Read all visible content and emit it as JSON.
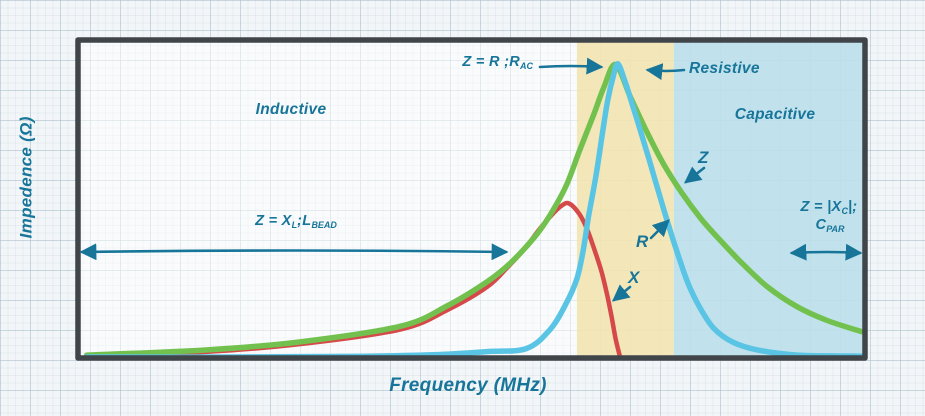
{
  "axes": {
    "y_label": "Impedence (Ω)",
    "x_label": "Frequency (MHz)"
  },
  "regions": {
    "inductive_label": "Inductive",
    "resistive_label": "Resistive",
    "capacitive_label": "Capacitive"
  },
  "curve_labels": {
    "z": "Z",
    "r": "R",
    "x": "X"
  },
  "formulas": {
    "peak": {
      "text": "Z = R ;R",
      "sub": "AC"
    },
    "inductive": {
      "t1": "Z = X",
      "s1": "L",
      "t2": ";L",
      "s2": "BEAD"
    },
    "capacitive": {
      "t1": "Z = |X",
      "s1": "C",
      "t2": "|;",
      "t3": "C",
      "s3": "PAR"
    }
  },
  "colors": {
    "annotation_teal": "#17759a",
    "curve_z_green": "#72c14e",
    "curve_r_blue": "#5ac4e4",
    "curve_x_red": "#d6494a",
    "band_resistive": "#f2e3ad",
    "band_capacitive": "#b7dde9",
    "plot_border": "#40454a",
    "paper": "#f2f6f8"
  },
  "chart_data": {
    "type": "line",
    "title": "",
    "xlabel": "Frequency (MHz)",
    "ylabel": "Impedence (Ω)",
    "axis_note": "log-style sketch; no numeric tick labels shown — point coords are percent of plot width/height",
    "legend_position": "inline-arrow-labels",
    "grid": "graph-paper background",
    "series": [
      {
        "name": "Z",
        "color": "#72c14e",
        "width": 5.5,
        "points": [
          [
            1.1,
            0.9
          ],
          [
            16,
            2.5
          ],
          [
            28,
            5
          ],
          [
            41,
            10
          ],
          [
            47,
            16.5
          ],
          [
            52,
            24
          ],
          [
            55,
            30
          ],
          [
            58,
            38
          ],
          [
            60,
            45
          ],
          [
            62,
            54
          ],
          [
            63.7,
            65
          ],
          [
            65.6,
            77
          ],
          [
            66.8,
            85
          ],
          [
            68.3,
            92.3
          ],
          [
            70.2,
            82
          ],
          [
            72.3,
            71
          ],
          [
            74.4,
            61
          ],
          [
            76.7,
            52
          ],
          [
            79.1,
            44
          ],
          [
            81.6,
            37
          ],
          [
            84.5,
            29.5
          ],
          [
            87.6,
            22.4
          ],
          [
            91.4,
            16.1
          ],
          [
            95.2,
            11.8
          ],
          [
            99.8,
            8.1
          ]
        ]
      },
      {
        "name": "R",
        "color": "#5ac4e4",
        "width": 5.5,
        "points": [
          [
            1.1,
            0.3
          ],
          [
            20,
            0.3
          ],
          [
            35,
            0.5
          ],
          [
            45,
            1
          ],
          [
            52,
            2
          ],
          [
            57,
            3
          ],
          [
            60,
            9
          ],
          [
            62,
            17
          ],
          [
            63.4,
            25
          ],
          [
            64.2,
            34
          ],
          [
            64.9,
            45
          ],
          [
            65.8,
            57
          ],
          [
            66.6,
            70
          ],
          [
            67.3,
            81
          ],
          [
            68,
            88.5
          ],
          [
            68.6,
            92.5
          ],
          [
            69.5,
            87
          ],
          [
            70.4,
            80
          ],
          [
            71.4,
            72
          ],
          [
            72.5,
            63
          ],
          [
            73.8,
            52
          ],
          [
            75,
            42
          ],
          [
            76.3,
            32
          ],
          [
            77.6,
            23
          ],
          [
            79.1,
            15.5
          ],
          [
            80.8,
            9.3
          ],
          [
            83.2,
            5
          ],
          [
            86.4,
            2.5
          ],
          [
            91.4,
            0.9
          ],
          [
            99.7,
            0.6
          ]
        ]
      },
      {
        "name": "X",
        "color": "#d6494a",
        "width": 4.5,
        "points": [
          [
            1.1,
            0.6
          ],
          [
            16,
            1.9
          ],
          [
            28,
            4.3
          ],
          [
            41,
            9
          ],
          [
            47,
            15.2
          ],
          [
            52,
            22.4
          ],
          [
            54.6,
            28.6
          ],
          [
            56.7,
            34.2
          ],
          [
            58.6,
            40.4
          ],
          [
            60.2,
            45
          ],
          [
            61.4,
            47.8
          ],
          [
            62.4,
            48.6
          ],
          [
            63.7,
            45.3
          ],
          [
            64.7,
            40.4
          ],
          [
            65.6,
            34.2
          ],
          [
            66.5,
            27.3
          ],
          [
            67.2,
            20.2
          ],
          [
            67.8,
            13
          ],
          [
            68.3,
            6.2
          ],
          [
            68.8,
            1
          ]
        ]
      }
    ],
    "regions": [
      {
        "name": "Inductive",
        "x_start": 0,
        "x_end": 63.4,
        "fill": "none"
      },
      {
        "name": "Resistive",
        "x_start": 63.4,
        "x_end": 75.7,
        "fill": "#f2e3ad"
      },
      {
        "name": "Capacitive",
        "x_start": 75.7,
        "x_end": 100,
        "fill": "#b7dde9"
      }
    ]
  }
}
